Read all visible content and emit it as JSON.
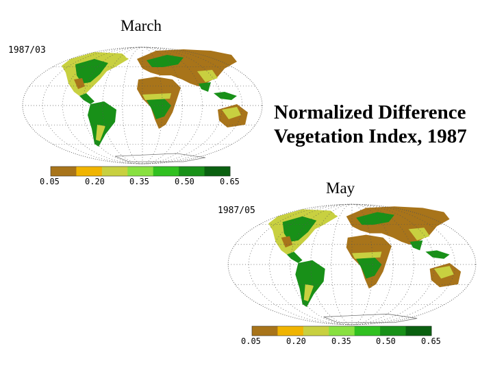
{
  "title": {
    "line1": "Normalized Difference",
    "line2": "Vegetation Index, 1987"
  },
  "panels": [
    {
      "month": "March",
      "date_label": "1987/03"
    },
    {
      "month": "May",
      "date_label": "1987/05"
    }
  ],
  "legend": {
    "ticks": [
      "0.05",
      "0.20",
      "0.35",
      "0.50",
      "0.65"
    ],
    "colors": [
      "#a8741a",
      "#f0b400",
      "#c8d040",
      "#88e040",
      "#30c020",
      "#189018",
      "#0a6010"
    ]
  },
  "map_colors": {
    "desert": "#a8741a",
    "grass": "#c8d040",
    "forest": "#189018",
    "ice": "#ffffff",
    "graticule": "#555555"
  }
}
